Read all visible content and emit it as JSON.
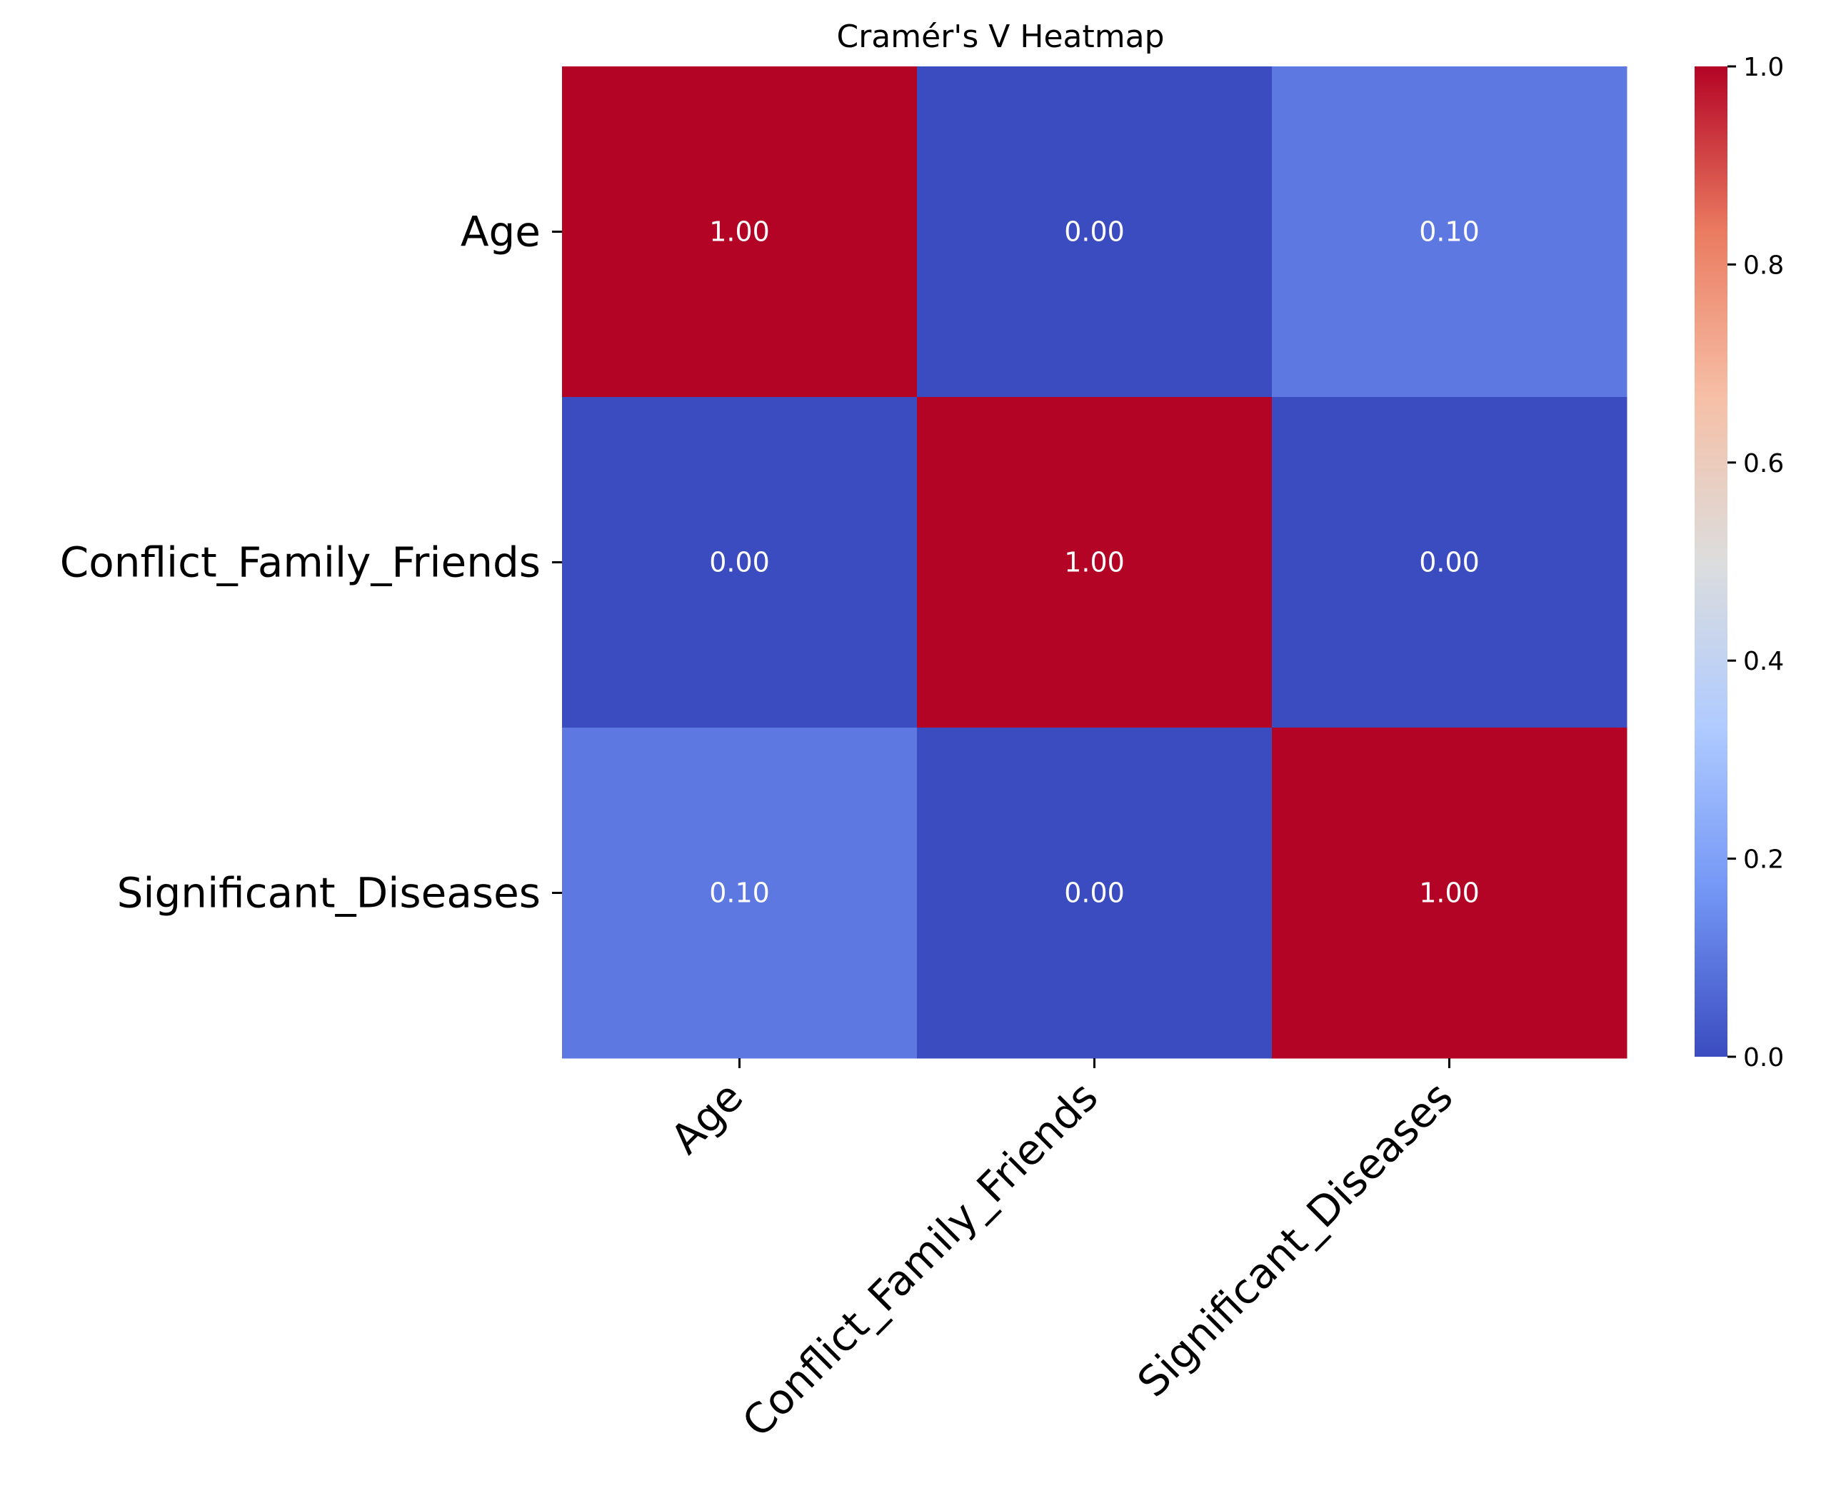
{
  "chart_data": {
    "type": "heatmap",
    "title": "Cramér's V Heatmap",
    "rows": [
      "Age",
      "Conflict_Family_Friends",
      "Significant_Diseases"
    ],
    "columns": [
      "Age",
      "Conflict_Family_Friends",
      "Significant_Diseases"
    ],
    "values": [
      [
        1.0,
        0.0,
        0.1
      ],
      [
        0.0,
        1.0,
        0.0
      ],
      [
        0.1,
        0.0,
        1.0
      ]
    ],
    "value_labels": [
      [
        "1.00",
        "0.00",
        "0.10"
      ],
      [
        "0.00",
        "1.00",
        "0.00"
      ],
      [
        "0.10",
        "0.00",
        "1.00"
      ]
    ],
    "colormap": "coolwarm",
    "vmin": 0.0,
    "vmax": 1.0,
    "colorbar_ticks": [
      "0.0",
      "0.2",
      "0.4",
      "0.6",
      "0.8",
      "1.0"
    ],
    "colorbar_tick_values": [
      0.0,
      0.2,
      0.4,
      0.6,
      0.8,
      1.0
    ],
    "colormap_stops": [
      "#3b4cc0",
      "#7396f5",
      "#b0cbff",
      "#dcdddd",
      "#f6bfa6",
      "#ea7b60",
      "#b40426"
    ]
  }
}
